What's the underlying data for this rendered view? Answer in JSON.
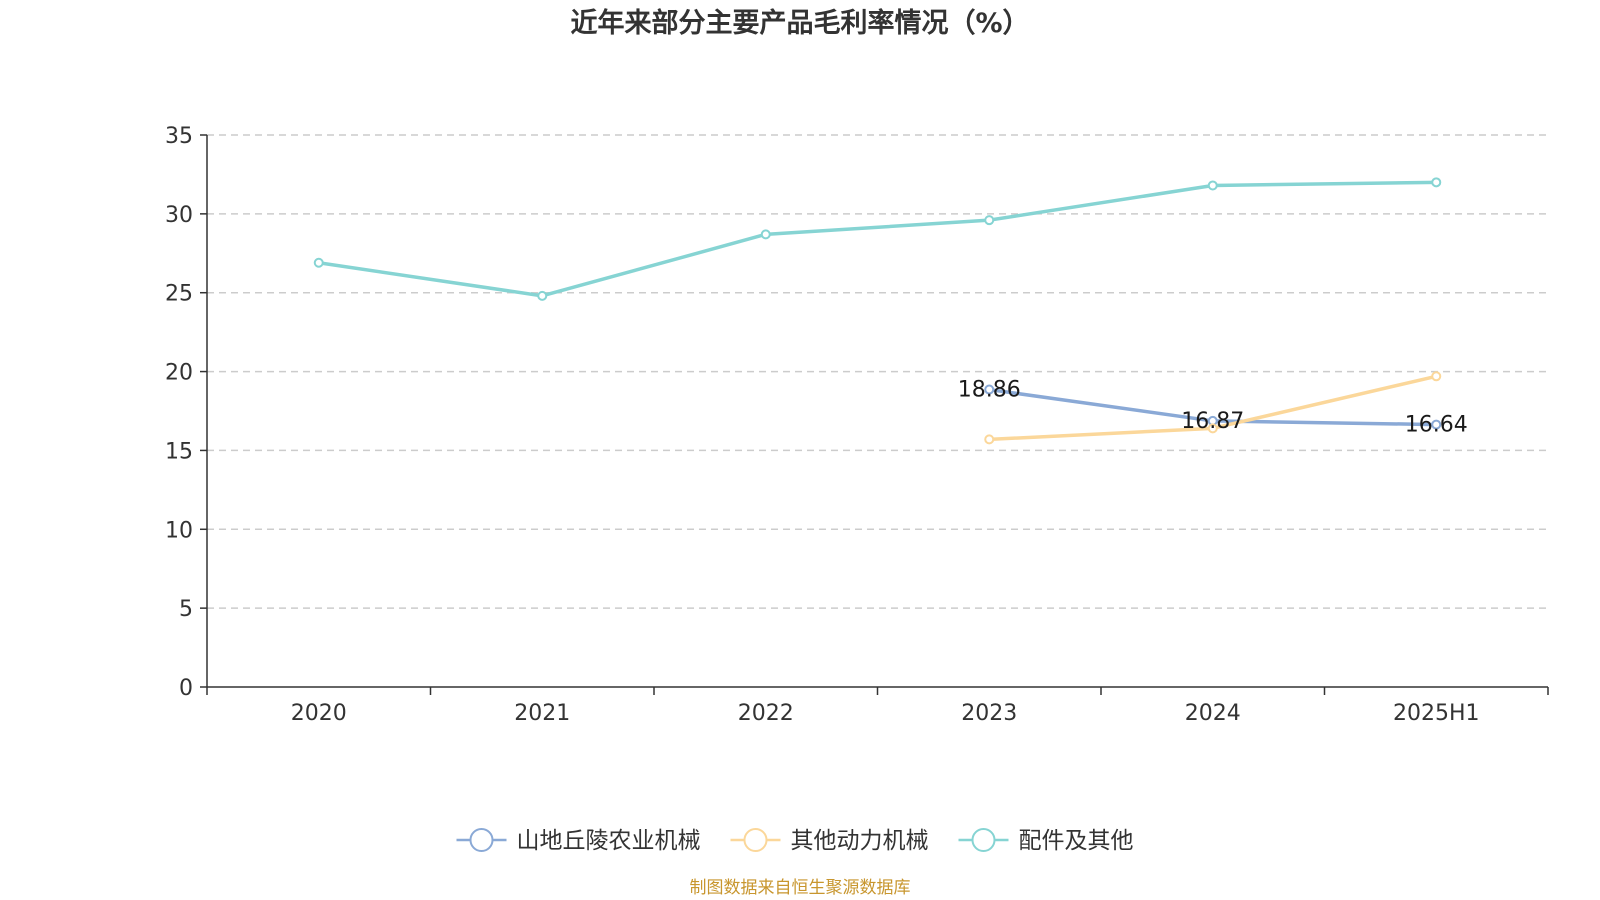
{
  "chart_data": {
    "type": "line",
    "title": "近年来部分主要产品毛利率情况（%）",
    "categories": [
      "2020",
      "2021",
      "2022",
      "2023",
      "2024",
      "2025H1"
    ],
    "ylim": [
      0,
      35
    ],
    "yticks": [
      0,
      5,
      10,
      15,
      20,
      25,
      30,
      35
    ],
    "grid": true,
    "legend_position": "bottom",
    "series": [
      {
        "name": "山地丘陵农业机械",
        "color": "#8aa9d6",
        "values": [
          null,
          null,
          null,
          18.86,
          16.87,
          16.64
        ],
        "labels": [
          "",
          "",
          "",
          "18.86",
          "16.87",
          "16.64"
        ]
      },
      {
        "name": "其他动力机械",
        "color": "#fbd79a",
        "values": [
          null,
          null,
          null,
          15.7,
          16.4,
          19.7
        ],
        "labels": [
          "",
          "",
          "",
          "",
          "",
          ""
        ]
      },
      {
        "name": "配件及其他",
        "color": "#86d4d3",
        "values": [
          26.9,
          24.8,
          28.7,
          29.6,
          31.8,
          32.0
        ],
        "labels": [
          "",
          "",
          "",
          "",
          "",
          ""
        ]
      }
    ]
  },
  "source": "制图数据来自恒生聚源数据库"
}
